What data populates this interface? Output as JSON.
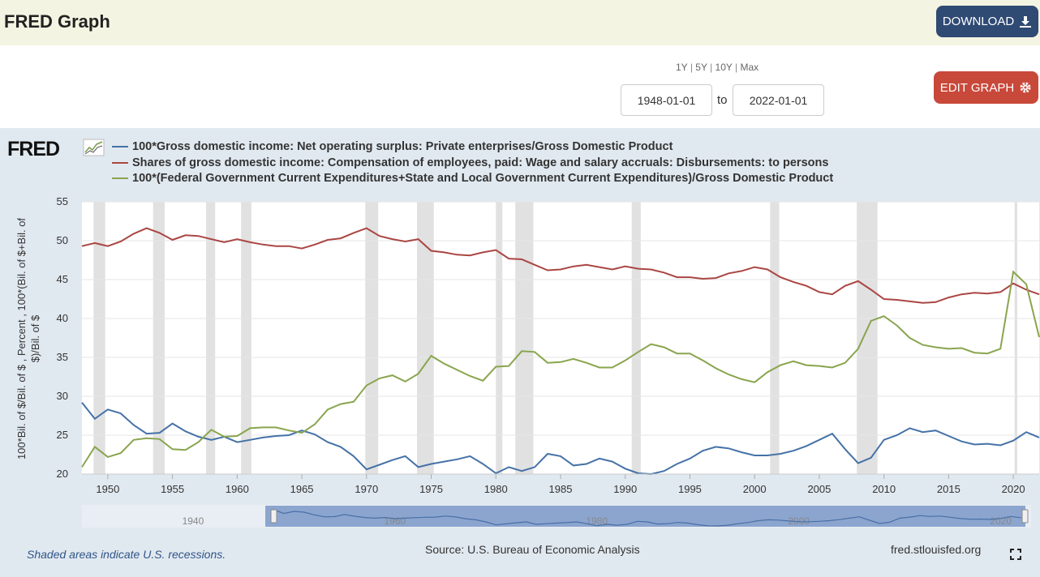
{
  "header": {
    "title": "FRED Graph",
    "download_label": "DOWNLOAD",
    "download_icon": "download-icon"
  },
  "controls": {
    "ranges": [
      "1Y",
      "5Y",
      "10Y",
      "Max"
    ],
    "start_date": "1948-01-01",
    "to_label": "to",
    "end_date": "2022-01-01",
    "edit_label": "EDIT GRAPH",
    "edit_icon": "gear-icon"
  },
  "graph": {
    "logo": "FRED",
    "source": "Source: U.S. Bureau of Economic Analysis",
    "recession_note": "Shaded areas indicate U.S. recessions.",
    "url": "fred.stlouisfed.org"
  },
  "colors": {
    "blue": "#4572a7",
    "red": "#aa4643",
    "green": "#89a54e",
    "recession": "#e1e1e1",
    "navigator_fill": "#8ba5cf"
  },
  "chart_data": {
    "type": "line",
    "ylabel": "100*Bil. of $/Bil. of $ , Percent , 100*(Bil. of $+Bil. of $)/Bil. of $",
    "ylim": [
      20,
      55
    ],
    "xlim": [
      1948,
      2022
    ],
    "y_ticks": [
      "20",
      "25",
      "30",
      "35",
      "40",
      "45",
      "50",
      "55"
    ],
    "x_ticks": [
      "1950",
      "1955",
      "1960",
      "1965",
      "1970",
      "1975",
      "1980",
      "1985",
      "1990",
      "1995",
      "2000",
      "2005",
      "2010",
      "2015",
      "2020"
    ],
    "recessions": [
      [
        1948.9,
        1949.8
      ],
      [
        1953.5,
        1954.4
      ],
      [
        1957.6,
        1958.3
      ],
      [
        1960.3,
        1961.1
      ],
      [
        1969.9,
        1970.9
      ],
      [
        1973.9,
        1975.2
      ],
      [
        1980.0,
        1980.5
      ],
      [
        1981.5,
        1982.9
      ],
      [
        1990.5,
        1991.2
      ],
      [
        2001.2,
        2001.9
      ],
      [
        2007.9,
        2009.5
      ],
      [
        2020.1,
        2020.3
      ]
    ],
    "x": [
      1948,
      1949,
      1950,
      1951,
      1952,
      1953,
      1954,
      1955,
      1956,
      1957,
      1958,
      1959,
      1960,
      1961,
      1962,
      1963,
      1964,
      1965,
      1966,
      1967,
      1968,
      1969,
      1970,
      1971,
      1972,
      1973,
      1974,
      1975,
      1976,
      1977,
      1978,
      1979,
      1980,
      1981,
      1982,
      1983,
      1984,
      1985,
      1986,
      1987,
      1988,
      1989,
      1990,
      1991,
      1992,
      1993,
      1994,
      1995,
      1996,
      1997,
      1998,
      1999,
      2000,
      2001,
      2002,
      2003,
      2004,
      2005,
      2006,
      2007,
      2008,
      2009,
      2010,
      2011,
      2012,
      2013,
      2014,
      2015,
      2016,
      2017,
      2018,
      2019,
      2020,
      2021,
      2022
    ],
    "series": [
      {
        "name": "100*Gross domestic income: Net operating surplus: Private enterprises/Gross Domestic Product",
        "color": "#4572a7",
        "values": [
          29.2,
          27.1,
          28.3,
          27.8,
          26.3,
          25.2,
          25.3,
          26.5,
          25.5,
          24.8,
          24.4,
          24.8,
          24.1,
          24.4,
          24.7,
          24.9,
          25.0,
          25.6,
          25.1,
          24.1,
          23.5,
          22.3,
          20.6,
          21.2,
          21.8,
          22.3,
          20.9,
          21.3,
          21.6,
          21.9,
          22.3,
          21.3,
          20.1,
          20.9,
          20.4,
          20.9,
          22.6,
          22.3,
          21.1,
          21.3,
          22.0,
          21.6,
          20.7,
          20.1,
          20.0,
          20.4,
          21.3,
          22.0,
          23.0,
          23.5,
          23.3,
          22.8,
          22.4,
          22.4,
          22.6,
          23.0,
          23.6,
          24.4,
          25.2,
          23.2,
          21.4,
          22.1,
          24.4,
          25.0,
          25.9,
          25.4,
          25.6,
          24.9,
          24.2,
          23.8,
          23.9,
          23.7,
          24.3,
          25.4,
          24.7
        ]
      },
      {
        "name": "Shares of gross domestic income: Compensation of employees, paid: Wage and salary accruals: Disbursements: to persons",
        "color": "#aa4643",
        "values": [
          49.3,
          49.7,
          49.3,
          49.9,
          50.9,
          51.6,
          51.0,
          50.1,
          50.7,
          50.6,
          50.2,
          49.8,
          50.2,
          49.8,
          49.5,
          49.3,
          49.3,
          49.0,
          49.5,
          50.1,
          50.3,
          51.0,
          51.6,
          50.6,
          50.2,
          49.9,
          50.2,
          48.7,
          48.5,
          48.2,
          48.1,
          48.5,
          48.8,
          47.7,
          47.6,
          46.9,
          46.2,
          46.3,
          46.7,
          46.9,
          46.6,
          46.3,
          46.7,
          46.4,
          46.3,
          45.9,
          45.3,
          45.3,
          45.1,
          45.2,
          45.8,
          46.1,
          46.6,
          46.3,
          45.3,
          44.7,
          44.2,
          43.4,
          43.1,
          44.2,
          44.8,
          43.7,
          42.5,
          42.4,
          42.2,
          42.0,
          42.1,
          42.7,
          43.1,
          43.3,
          43.2,
          43.4,
          44.5,
          43.7,
          43.1
        ]
      },
      {
        "name": "100*(Federal Government Current Expenditures+State and Local Government Current Expenditures)/Gross Domestic Product",
        "color": "#89a54e",
        "values": [
          20.9,
          23.5,
          22.2,
          22.7,
          24.4,
          24.6,
          24.5,
          23.2,
          23.1,
          24.1,
          25.7,
          24.8,
          24.9,
          25.9,
          26.0,
          26.0,
          25.6,
          25.3,
          26.4,
          28.3,
          29.0,
          29.3,
          31.4,
          32.3,
          32.7,
          31.9,
          32.9,
          35.2,
          34.2,
          33.4,
          32.6,
          32.0,
          33.8,
          33.9,
          35.8,
          35.7,
          34.3,
          34.4,
          34.8,
          34.3,
          33.7,
          33.7,
          34.6,
          35.7,
          36.7,
          36.3,
          35.5,
          35.5,
          34.6,
          33.6,
          32.8,
          32.2,
          31.8,
          33.1,
          34.0,
          34.5,
          34.0,
          33.9,
          33.7,
          34.3,
          36.1,
          39.7,
          40.3,
          39.1,
          37.5,
          36.6,
          36.3,
          36.1,
          36.2,
          35.6,
          35.5,
          36.1,
          46.0,
          44.4,
          37.6
        ]
      }
    ]
  }
}
